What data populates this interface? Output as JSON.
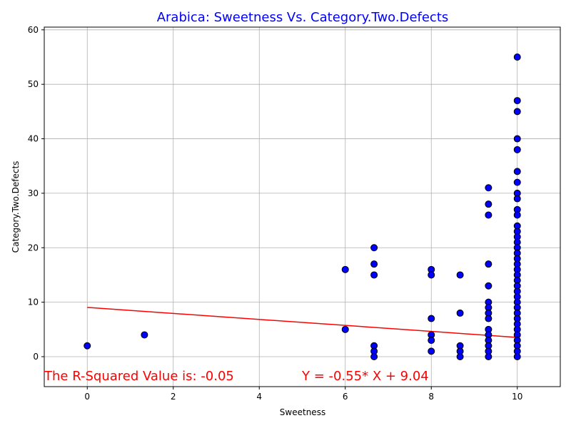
{
  "chart_data": {
    "type": "scatter",
    "title": "Arabica: Sweetness Vs. Category.Two.Defects",
    "xlabel": "Sweetness",
    "ylabel": "Category.Two.Defects",
    "xlim": [
      -1,
      11
    ],
    "ylim": [
      -5.5,
      60.5
    ],
    "xticks": [
      0,
      2,
      4,
      6,
      8,
      10
    ],
    "yticks": [
      0,
      10,
      20,
      30,
      40,
      50,
      60
    ],
    "grid": true,
    "colors": {
      "point_fill": "#0000ff",
      "point_edge": "#000000",
      "line": "#ff0000",
      "title": "#0000ff",
      "annotation": "#ff0000"
    },
    "series": [
      {
        "points": [
          [
            0,
            2
          ],
          [
            1.33,
            4
          ],
          [
            6,
            16
          ],
          [
            6,
            5
          ],
          [
            6.67,
            20
          ],
          [
            6.67,
            17
          ],
          [
            6.67,
            15
          ],
          [
            6.67,
            2
          ],
          [
            6.67,
            1
          ],
          [
            6.67,
            0
          ],
          [
            8,
            16
          ],
          [
            8,
            15
          ],
          [
            8,
            7
          ],
          [
            8,
            4
          ],
          [
            8,
            3
          ],
          [
            8,
            1
          ],
          [
            8.67,
            15
          ],
          [
            8.67,
            8
          ],
          [
            8.67,
            2
          ],
          [
            8.67,
            1
          ],
          [
            8.67,
            0
          ],
          [
            9.33,
            31
          ],
          [
            9.33,
            28
          ],
          [
            9.33,
            26
          ],
          [
            9.33,
            17
          ],
          [
            9.33,
            13
          ],
          [
            9.33,
            10
          ],
          [
            9.33,
            9
          ],
          [
            9.33,
            8
          ],
          [
            9.33,
            7
          ],
          [
            9.33,
            5
          ],
          [
            9.33,
            4
          ],
          [
            9.33,
            3
          ],
          [
            9.33,
            2
          ],
          [
            9.33,
            1
          ],
          [
            9.33,
            0
          ],
          [
            10,
            55
          ],
          [
            10,
            47
          ],
          [
            10,
            45
          ],
          [
            10,
            40
          ],
          [
            10,
            38
          ],
          [
            10,
            34
          ],
          [
            10,
            32
          ],
          [
            10,
            30
          ],
          [
            10,
            29
          ],
          [
            10,
            27
          ],
          [
            10,
            26
          ],
          [
            10,
            24
          ],
          [
            10,
            23
          ],
          [
            10,
            22
          ],
          [
            10,
            21
          ],
          [
            10,
            20
          ],
          [
            10,
            19
          ],
          [
            10,
            18
          ],
          [
            10,
            17
          ],
          [
            10,
            16
          ],
          [
            10,
            15
          ],
          [
            10,
            14
          ],
          [
            10,
            13
          ],
          [
            10,
            12
          ],
          [
            10,
            11
          ],
          [
            10,
            10
          ],
          [
            10,
            9
          ],
          [
            10,
            8
          ],
          [
            10,
            7
          ],
          [
            10,
            6
          ],
          [
            10,
            5
          ],
          [
            10,
            4
          ],
          [
            10,
            3
          ],
          [
            10,
            2
          ],
          [
            10,
            1
          ],
          [
            10,
            0
          ]
        ]
      }
    ],
    "regression": {
      "slope": -0.55,
      "intercept": 9.04,
      "x_range": [
        0,
        10
      ]
    },
    "annotations": {
      "r_squared": "The R-Squared Value is: -0.05",
      "equation": "Y = -0.55* X + 9.04"
    }
  }
}
